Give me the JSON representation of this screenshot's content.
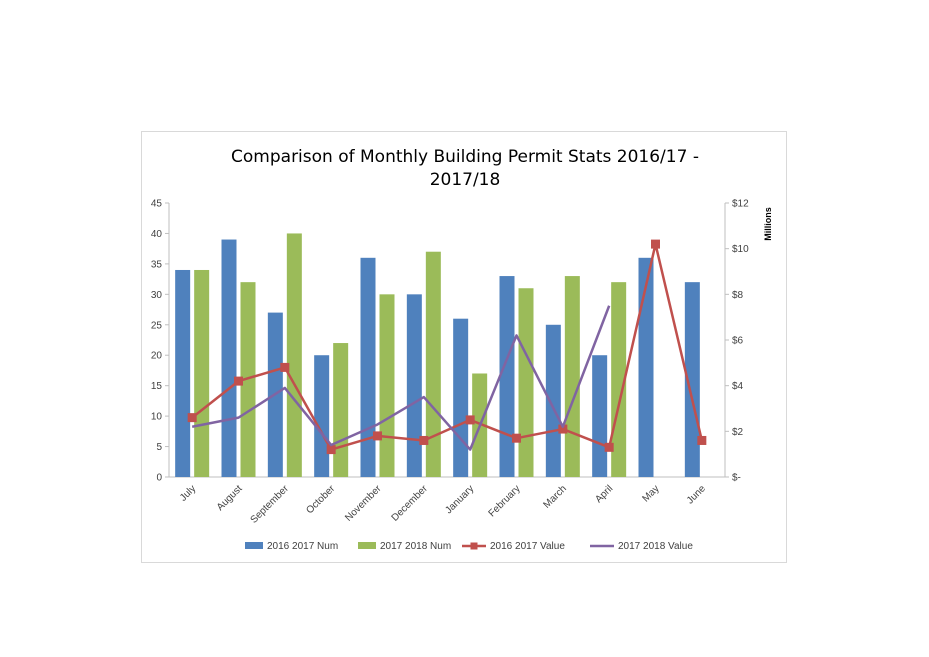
{
  "chart_data": {
    "type": "bar",
    "title_line1": "Comparison of Monthly Building Permit Stats 2016/17 -",
    "title_line2": "2017/18",
    "categories": [
      "July",
      "August",
      "September",
      "October",
      "November",
      "December",
      "January",
      "February",
      "March",
      "April",
      "May",
      "June"
    ],
    "y_left": {
      "ylim": [
        0,
        45
      ],
      "ticks": [
        "0",
        "5",
        "10",
        "15",
        "20",
        "25",
        "30",
        "35",
        "40",
        "45"
      ]
    },
    "y_right": {
      "ylim": [
        0,
        12
      ],
      "unit_label": "Millions",
      "ticks": [
        "$-",
        "$2",
        "$4",
        "$6",
        "$8",
        "$10",
        "$12"
      ]
    },
    "bar_series": [
      {
        "name": "2016 2017 Num",
        "color": "#4f81bd",
        "values": [
          34,
          39,
          27,
          20,
          36,
          30,
          26,
          33,
          25,
          20,
          36,
          32
        ]
      },
      {
        "name": "2017 2018 Num",
        "color": "#9bbb59",
        "values": [
          34,
          32,
          40,
          22,
          30,
          37,
          17,
          31,
          33,
          32,
          null,
          null
        ]
      }
    ],
    "line_series": [
      {
        "name": "2016 2017 Value",
        "color": "#c0504d",
        "marker": "square",
        "values": [
          2.6,
          4.2,
          4.8,
          1.2,
          1.8,
          1.6,
          2.5,
          1.7,
          2.1,
          1.3,
          10.2,
          1.6
        ]
      },
      {
        "name": "2017 2018 Value",
        "color": "#8064a2",
        "marker": "none",
        "values": [
          2.2,
          2.6,
          3.9,
          1.4,
          2.3,
          3.5,
          1.2,
          6.2,
          2.2,
          7.5,
          null,
          null
        ]
      }
    ],
    "grid": false,
    "legend_position": "bottom"
  }
}
